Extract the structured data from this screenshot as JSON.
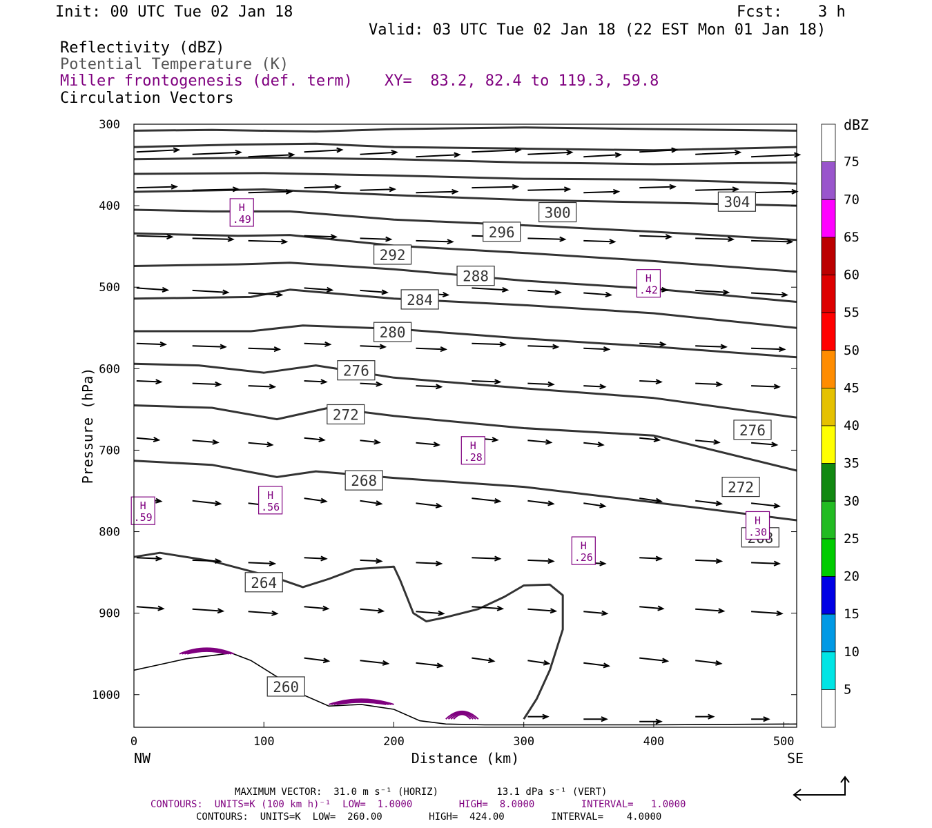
{
  "header": {
    "init": "Init: 00 UTC Tue 02 Jan 18",
    "fcst_label": "Fcst:",
    "fcst_value": "3 h",
    "valid": "Valid: 03 UTC Tue 02 Jan 18 (22 EST Mon 01 Jan 18)",
    "line_reflectivity": "Reflectivity (dBZ)",
    "line_theta": "Potential Temperature (K)",
    "line_frontogenesis": "Miller frontogenesis (def. term)",
    "xy": "XY=  83.2, 82.4 to 119.3, 59.8",
    "line_vectors": "Circulation Vectors"
  },
  "chart_data": {
    "type": "cross-section",
    "ylabel": "Pressure (hPa)",
    "xlabel": "Distance (km)",
    "x_ticks": [
      "0",
      "100",
      "200",
      "300",
      "400",
      "500"
    ],
    "y_ticks": [
      "300",
      "400",
      "500",
      "600",
      "700",
      "800",
      "900",
      "1000"
    ],
    "xlim": [
      0,
      510
    ],
    "ylim": [
      1040,
      300
    ],
    "y_scale": "pressure",
    "x_end_labels": {
      "left": "NW",
      "right": "SE"
    },
    "colorbar": {
      "unit": "dBZ",
      "labels": [
        "75",
        "70",
        "65",
        "60",
        "55",
        "50",
        "45",
        "40",
        "35",
        "30",
        "25",
        "20",
        "15",
        "10",
        "5"
      ],
      "colors": [
        "#ffffff",
        "#00e5e5",
        "#0099e5",
        "#0000e5",
        "#00cc00",
        "#22bb22",
        "#118811",
        "#ffff00",
        "#e5c100",
        "#ff8c00",
        "#ff0000",
        "#dd0000",
        "#bb0000",
        "#ff00ff",
        "#9955cc",
        "#ffffff"
      ]
    },
    "theta_labels": [
      {
        "text": "304",
        "x": 464,
        "p": 395
      },
      {
        "text": "300",
        "x": 326,
        "p": 408
      },
      {
        "text": "296",
        "x": 283,
        "p": 432
      },
      {
        "text": "292",
        "x": 199,
        "p": 460
      },
      {
        "text": "288",
        "x": 263,
        "p": 486
      },
      {
        "text": "284",
        "x": 220,
        "p": 515
      },
      {
        "text": "280",
        "x": 199,
        "p": 555
      },
      {
        "text": "276",
        "x": 171,
        "p": 602
      },
      {
        "text": "272",
        "x": 163,
        "p": 656
      },
      {
        "text": "276",
        "x": 476,
        "p": 675
      },
      {
        "text": "268",
        "x": 177,
        "p": 737
      },
      {
        "text": "272",
        "x": 467,
        "p": 745
      },
      {
        "text": "268",
        "x": 482,
        "p": 807
      },
      {
        "text": "264",
        "x": 100,
        "p": 862
      },
      {
        "text": "260",
        "x": 117,
        "p": 990
      }
    ],
    "frontogenesis_highs": [
      {
        "letter": "H",
        "value": ".49",
        "x": 83,
        "p": 410
      },
      {
        "letter": "H",
        "value": ".42",
        "x": 396,
        "p": 497
      },
      {
        "letter": "H",
        "value": ".28",
        "x": 261,
        "p": 702
      },
      {
        "letter": "H",
        "value": ".56",
        "x": 105,
        "p": 763
      },
      {
        "letter": "H",
        "value": ".59",
        "x": 7,
        "p": 776
      },
      {
        "letter": "H",
        "value": ".30",
        "x": 480,
        "p": 794
      },
      {
        "letter": "H",
        "value": ".26",
        "x": 346,
        "p": 825
      }
    ]
  },
  "footer": {
    "max_vector": "MAXIMUM VECTOR:  31.0 m s⁻¹ (HORIZ)          13.1 dPa s⁻¹ (VERT)",
    "contours1": "CONTOURS:  UNITS=K (100 km h)⁻¹  LOW=  1.0000        HIGH=  8.0000        INTERVAL=   1.0000",
    "contours2": "CONTOURS:  UNITS=K  LOW=  260.00        HIGH=  424.00        INTERVAL=    4.0000"
  },
  "colors": {
    "purple": "#7f007f",
    "contour": "#333333"
  }
}
